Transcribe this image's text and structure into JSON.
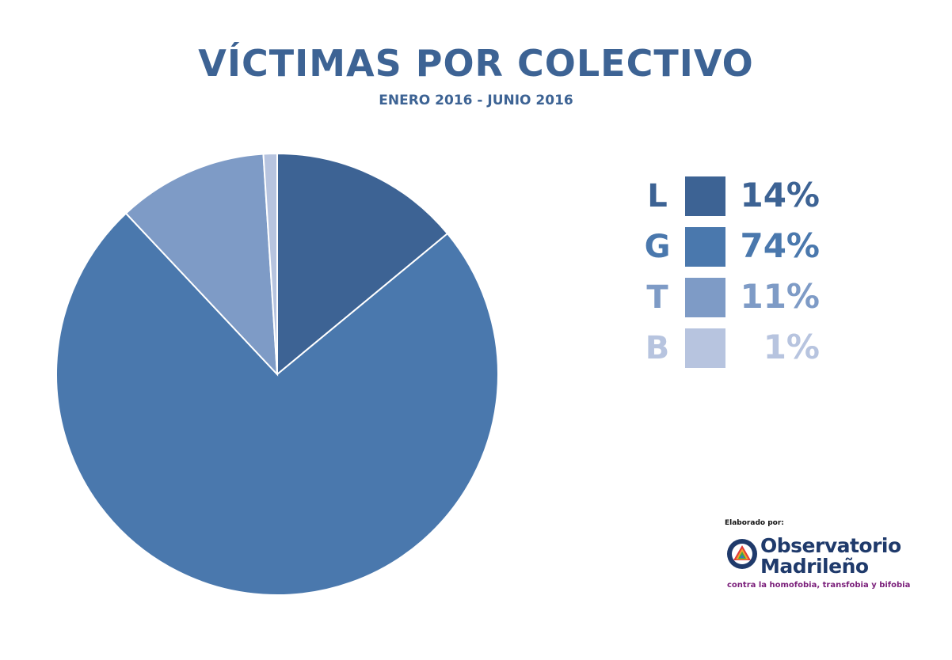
{
  "chart_data": {
    "type": "pie",
    "title": "VÍCTIMAS POR COLECTIVO",
    "subtitle": "ENERO 2016 - JUNIO 2016",
    "legend_position": "right",
    "slices": [
      {
        "label": "L",
        "value": 14,
        "display": "14%",
        "color": "#3d6394"
      },
      {
        "label": "G",
        "value": 74,
        "display": "74%",
        "color": "#4a78ad"
      },
      {
        "label": "T",
        "value": 11,
        "display": "11%",
        "color": "#7e9bc6"
      },
      {
        "label": "B",
        "value": 1,
        "display": "1%",
        "color": "#b7c4df"
      }
    ]
  },
  "logo": {
    "credit": "Elaborado por:",
    "line1": "Observatorio",
    "line2": "Madrileño",
    "tagline": "contra la homofobia, transfobia y bifobia"
  }
}
